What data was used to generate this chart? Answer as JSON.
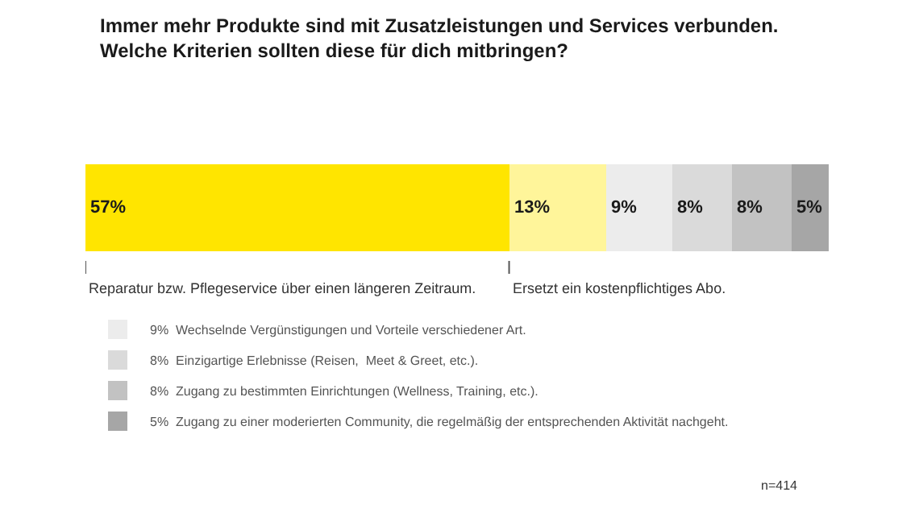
{
  "chart_data": {
    "type": "bar",
    "orientation": "horizontal",
    "stacked": true,
    "title": "Immer mehr Produkte sind mit Zusatzleistungen und Services verbunden.\nWelche Kriterien sollten diese für dich mitbringen?",
    "categories": [
      null
    ],
    "xlim": [
      0,
      100
    ],
    "tick_labels": false,
    "legend": "bottom left",
    "series": [
      {
        "name": "Reparatur bzw. Pflegeservice über einen längeren Zeitraum.",
        "color": "#ffe500",
        "values": [
          57
        ],
        "value_labels": [
          "57%"
        ]
      },
      {
        "name": "Ersetzt ein kostenpflichtiges Abo.",
        "color": "#fff59a",
        "values": [
          13
        ],
        "value_labels": [
          "13%"
        ]
      },
      {
        "name": "9%  Wechselnde Vergünstigungen und Vorteile verschiedener Art.",
        "color": "#ececec",
        "values": [
          9
        ],
        "value_labels": [
          "9%"
        ]
      },
      {
        "name": "8%  Einzigartige Erlebnisse (Reisen,  Meet & Greet, etc.).",
        "color": "#dadada",
        "values": [
          8
        ],
        "value_labels": [
          "8%"
        ]
      },
      {
        "name": "8%  Zugang zu bestimmten Einrichtungen (Wellness, Training, etc.).",
        "color": "#c2c2c2",
        "values": [
          8
        ],
        "value_labels": [
          "8%"
        ]
      },
      {
        "name": "5%  Zugang zu einer moderierten Community, die regelmäßig der entsprechenden Aktivität nachgeht.",
        "color": "#a6a6a6",
        "values": [
          5
        ],
        "value_labels": [
          "5%"
        ]
      }
    ],
    "annotations": [
      "n=414"
    ]
  }
}
